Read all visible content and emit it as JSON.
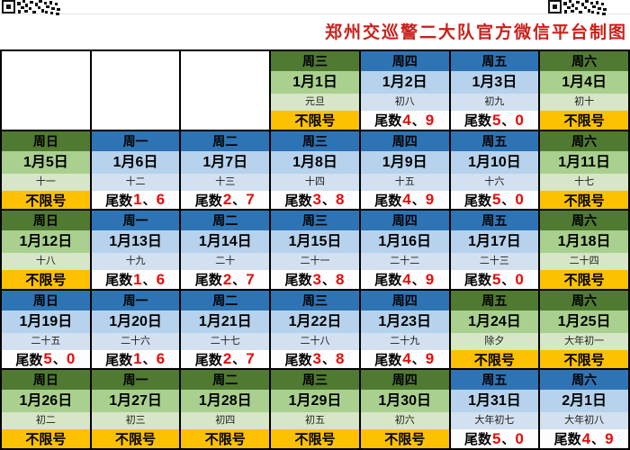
{
  "title": "郑州交巡警二大队官方微信平台制图",
  "labels": {
    "no_restriction": "不限号",
    "tail_prefix": "尾数",
    "separator": "、"
  },
  "colors": {
    "title_red": "#c9201a",
    "green_header": "#507932",
    "green_date": "#a9d08e",
    "green_lunar": "#d6e6c6",
    "orange": "#fdc101",
    "blue_header": "#2e74b5",
    "blue_date": "#b6d2ec",
    "blue_lunar": "#d2e0f0",
    "red_number": "#e80b0b"
  },
  "calendar": {
    "weeks": [
      [
        null,
        null,
        null,
        {
          "weekday": "周三",
          "date": "1月1日",
          "lunar": "元旦",
          "tail": null,
          "theme": "green"
        },
        {
          "weekday": "周四",
          "date": "1月2日",
          "lunar": "初八",
          "tail": [
            "4",
            "9"
          ],
          "theme": "blue"
        },
        {
          "weekday": "周五",
          "date": "1月3日",
          "lunar": "初九",
          "tail": [
            "5",
            "0"
          ],
          "theme": "blue"
        },
        {
          "weekday": "周六",
          "date": "1月4日",
          "lunar": "初十",
          "tail": null,
          "theme": "green"
        }
      ],
      [
        {
          "weekday": "周日",
          "date": "1月5日",
          "lunar": "十一",
          "tail": null,
          "theme": "green"
        },
        {
          "weekday": "周一",
          "date": "1月6日",
          "lunar": "十二",
          "tail": [
            "1",
            "6"
          ],
          "theme": "blue"
        },
        {
          "weekday": "周二",
          "date": "1月7日",
          "lunar": "十三",
          "tail": [
            "2",
            "7"
          ],
          "theme": "blue"
        },
        {
          "weekday": "周三",
          "date": "1月8日",
          "lunar": "十四",
          "tail": [
            "3",
            "8"
          ],
          "theme": "blue"
        },
        {
          "weekday": "周四",
          "date": "1月9日",
          "lunar": "十五",
          "tail": [
            "4",
            "9"
          ],
          "theme": "blue"
        },
        {
          "weekday": "周五",
          "date": "1月10日",
          "lunar": "十六",
          "tail": [
            "5",
            "0"
          ],
          "theme": "blue"
        },
        {
          "weekday": "周六",
          "date": "1月11日",
          "lunar": "十七",
          "tail": null,
          "theme": "green"
        }
      ],
      [
        {
          "weekday": "周日",
          "date": "1月12日",
          "lunar": "十八",
          "tail": null,
          "theme": "green"
        },
        {
          "weekday": "周一",
          "date": "1月13日",
          "lunar": "十九",
          "tail": [
            "1",
            "6"
          ],
          "theme": "blue"
        },
        {
          "weekday": "周二",
          "date": "1月14日",
          "lunar": "二十",
          "tail": [
            "2",
            "7"
          ],
          "theme": "blue"
        },
        {
          "weekday": "周三",
          "date": "1月15日",
          "lunar": "二十一",
          "tail": [
            "3",
            "8"
          ],
          "theme": "blue"
        },
        {
          "weekday": "周四",
          "date": "1月16日",
          "lunar": "二十二",
          "tail": [
            "4",
            "9"
          ],
          "theme": "blue"
        },
        {
          "weekday": "周五",
          "date": "1月17日",
          "lunar": "二十三",
          "tail": [
            "5",
            "0"
          ],
          "theme": "blue"
        },
        {
          "weekday": "周六",
          "date": "1月18日",
          "lunar": "二十四",
          "tail": null,
          "theme": "green"
        }
      ],
      [
        {
          "weekday": "周日",
          "date": "1月19日",
          "lunar": "二十五",
          "tail": [
            "5",
            "0"
          ],
          "theme": "blue"
        },
        {
          "weekday": "周一",
          "date": "1月20日",
          "lunar": "二十六",
          "tail": [
            "1",
            "6"
          ],
          "theme": "blue"
        },
        {
          "weekday": "周二",
          "date": "1月21日",
          "lunar": "二十七",
          "tail": [
            "2",
            "7"
          ],
          "theme": "blue"
        },
        {
          "weekday": "周三",
          "date": "1月22日",
          "lunar": "二十八",
          "tail": [
            "3",
            "8"
          ],
          "theme": "blue"
        },
        {
          "weekday": "周四",
          "date": "1月23日",
          "lunar": "二十九",
          "tail": [
            "4",
            "9"
          ],
          "theme": "blue"
        },
        {
          "weekday": "周五",
          "date": "1月24日",
          "lunar": "除夕",
          "tail": null,
          "theme": "green"
        },
        {
          "weekday": "周六",
          "date": "1月25日",
          "lunar": "大年初一",
          "tail": null,
          "theme": "green"
        }
      ],
      [
        {
          "weekday": "周日",
          "date": "1月26日",
          "lunar": "初二",
          "tail": null,
          "theme": "green"
        },
        {
          "weekday": "周一",
          "date": "1月27日",
          "lunar": "初三",
          "tail": null,
          "theme": "green"
        },
        {
          "weekday": "周二",
          "date": "1月28日",
          "lunar": "初四",
          "tail": null,
          "theme": "green"
        },
        {
          "weekday": "周三",
          "date": "1月29日",
          "lunar": "初五",
          "tail": null,
          "theme": "green"
        },
        {
          "weekday": "周四",
          "date": "1月30日",
          "lunar": "初六",
          "tail": null,
          "theme": "green"
        },
        {
          "weekday": "周五",
          "date": "1月31日",
          "lunar": "大年初七",
          "tail": [
            "5",
            "0"
          ],
          "theme": "blue"
        },
        {
          "weekday": "周六",
          "date": "2月1日",
          "lunar": "大年初八",
          "tail": [
            "4",
            "9"
          ],
          "theme": "blue"
        }
      ]
    ]
  }
}
